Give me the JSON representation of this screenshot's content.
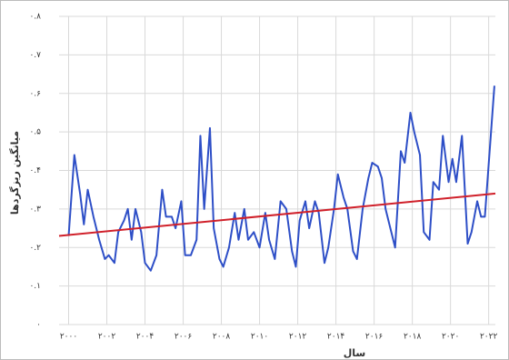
{
  "chart_data": {
    "type": "line",
    "xlabel": "سال",
    "ylabel": "میانگین ریزگردها",
    "xlim": [
      1999.5,
      2022.35
    ],
    "ylim": [
      0,
      0.8
    ],
    "xticks": [
      {
        "value": 2000,
        "label": "۲۰۰۰"
      },
      {
        "value": 2002,
        "label": "۲۰۰۲"
      },
      {
        "value": 2004,
        "label": "۲۰۰۴"
      },
      {
        "value": 2006,
        "label": "۲۰۰۶"
      },
      {
        "value": 2008,
        "label": "۲۰۰۸"
      },
      {
        "value": 2010,
        "label": "۲۰۱۰"
      },
      {
        "value": 2012,
        "label": "۲۰۱۲"
      },
      {
        "value": 2014,
        "label": "۲۰۱۴"
      },
      {
        "value": 2016,
        "label": "۲۰۱۶"
      },
      {
        "value": 2018,
        "label": "۲۰۱۸"
      },
      {
        "value": 2020,
        "label": "۲۰۲۰"
      },
      {
        "value": 2022,
        "label": "۲۰۲۲"
      }
    ],
    "yticks": [
      {
        "value": 0,
        "label": "۰"
      },
      {
        "value": 0.1,
        "label": "۰.۱"
      },
      {
        "value": 0.2,
        "label": "۰.۲"
      },
      {
        "value": 0.3,
        "label": "۰.۳"
      },
      {
        "value": 0.4,
        "label": "۰.۴"
      },
      {
        "value": 0.5,
        "label": "۰.۵"
      },
      {
        "value": 0.6,
        "label": "۰.۶"
      },
      {
        "value": 0.7,
        "label": "۰.۷"
      },
      {
        "value": 0.8,
        "label": "۰.۸"
      }
    ],
    "grid": true,
    "series": [
      {
        "color": "#2e4fc7",
        "x": [
          2000.0,
          2000.3,
          2000.6,
          2000.8,
          2001.0,
          2001.3,
          2001.6,
          2001.9,
          2002.1,
          2002.4,
          2002.6,
          2002.9,
          2003.1,
          2003.3,
          2003.5,
          2003.8,
          2004.0,
          2004.3,
          2004.6,
          2004.9,
          2005.1,
          2005.4,
          2005.6,
          2005.9,
          2006.1,
          2006.4,
          2006.7,
          2006.9,
          2007.1,
          2007.4,
          2007.6,
          2007.9,
          2008.1,
          2008.4,
          2008.7,
          2008.9,
          2009.2,
          2009.4,
          2009.7,
          2010.0,
          2010.3,
          2010.5,
          2010.8,
          2011.1,
          2011.4,
          2011.7,
          2011.9,
          2012.1,
          2012.4,
          2012.6,
          2012.9,
          2013.1,
          2013.4,
          2013.6,
          2013.9,
          2014.1,
          2014.4,
          2014.6,
          2014.9,
          2015.1,
          2015.4,
          2015.7,
          2015.9,
          2016.2,
          2016.4,
          2016.6,
          2016.9,
          2017.1,
          2017.4,
          2017.6,
          2017.9,
          2018.1,
          2018.4,
          2018.6,
          2018.9,
          2019.1,
          2019.4,
          2019.6,
          2019.9,
          2020.1,
          2020.3,
          2020.6,
          2020.9,
          2021.1,
          2021.4,
          2021.6,
          2021.8,
          2022.3
        ],
        "values": [
          0.23,
          0.44,
          0.34,
          0.26,
          0.35,
          0.28,
          0.22,
          0.17,
          0.18,
          0.16,
          0.24,
          0.27,
          0.3,
          0.22,
          0.3,
          0.24,
          0.16,
          0.14,
          0.18,
          0.35,
          0.28,
          0.28,
          0.25,
          0.32,
          0.18,
          0.18,
          0.22,
          0.49,
          0.3,
          0.51,
          0.25,
          0.17,
          0.15,
          0.2,
          0.29,
          0.22,
          0.3,
          0.22,
          0.24,
          0.2,
          0.29,
          0.22,
          0.17,
          0.32,
          0.3,
          0.19,
          0.15,
          0.27,
          0.32,
          0.25,
          0.32,
          0.29,
          0.16,
          0.2,
          0.3,
          0.39,
          0.33,
          0.3,
          0.19,
          0.17,
          0.3,
          0.38,
          0.42,
          0.41,
          0.38,
          0.3,
          0.24,
          0.2,
          0.45,
          0.42,
          0.55,
          0.5,
          0.44,
          0.24,
          0.22,
          0.37,
          0.35,
          0.49,
          0.37,
          0.43,
          0.37,
          0.49,
          0.21,
          0.24,
          0.32,
          0.28,
          0.28,
          0.62
        ]
      },
      {
        "color": "#d0202a",
        "x": [
          1999.5,
          2022.35
        ],
        "values": [
          0.23,
          0.34
        ]
      }
    ]
  }
}
